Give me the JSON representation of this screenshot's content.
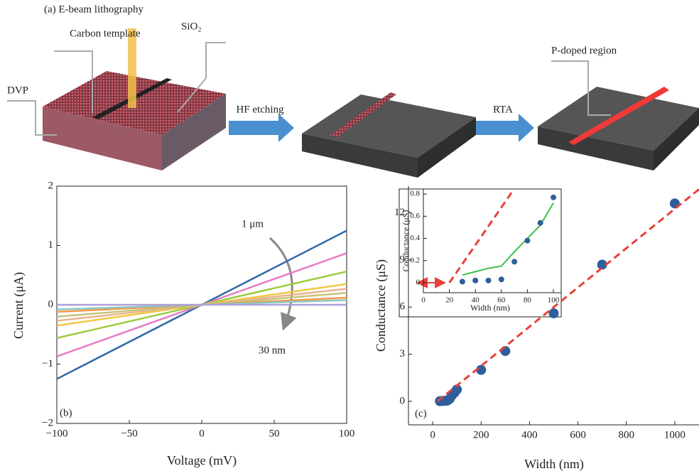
{
  "diagram": {
    "title": "(a)  E-beam lithography",
    "labels": [
      "Carbon template",
      "SiO₂",
      "DVP",
      "HF etching",
      "RTA",
      "P-doped region"
    ]
  },
  "chart_data": [
    {
      "type": "line",
      "panel_label": "(b)",
      "x_label": "Voltage (mV)",
      "y_label": "Current (μA)",
      "annotations": [
        "1 μm",
        "30 nm"
      ],
      "x": [
        -100,
        0,
        100
      ],
      "series": [
        {
          "color": "#2e6aa6",
          "values": [
            -1.25,
            0,
            1.25
          ]
        },
        {
          "color": "#e57bc4",
          "values": [
            -0.87,
            0,
            0.87
          ]
        },
        {
          "color": "#9ccc3c",
          "values": [
            -0.56,
            0,
            0.56
          ]
        },
        {
          "color": "#f2c744",
          "values": [
            -0.35,
            0,
            0.35
          ]
        },
        {
          "color": "#e9b48c",
          "values": [
            -0.27,
            0,
            0.27
          ]
        },
        {
          "color": "#c8c27a",
          "values": [
            -0.2,
            0,
            0.2
          ]
        },
        {
          "color": "#f29a4a",
          "values": [
            -0.12,
            0,
            0.12
          ]
        },
        {
          "color": "#8fc6c0",
          "values": [
            -0.08,
            0,
            0.08
          ]
        },
        {
          "color": "#b0a0d8",
          "values": [
            0,
            0,
            0
          ]
        }
      ],
      "xlim": [
        -100,
        100
      ],
      "xticks": [
        {
          "value": -100,
          "label": "−100"
        },
        {
          "value": -50,
          "label": "−50"
        },
        0,
        50,
        100
      ],
      "ylim": [
        -2,
        2
      ],
      "yticks": [
        {
          "value": -2,
          "label": "−2"
        },
        {
          "value": -1,
          "label": "−1"
        },
        0,
        1,
        2
      ]
    },
    {
      "type": "scatter",
      "panel_label": "(c)",
      "x_label": "Width (nm)",
      "y_label": "Conductance (μS)",
      "series": [
        {
          "kind": "points",
          "color": "#2f5f9a",
          "x": [
            30,
            40,
            50,
            60,
            70,
            80,
            90,
            100,
            200,
            300,
            500,
            700,
            1000
          ],
          "values": [
            0.01,
            0.02,
            0.03,
            0.04,
            0.15,
            0.38,
            0.55,
            0.75,
            2.0,
            3.2,
            5.6,
            8.7,
            12.6
          ]
        },
        {
          "kind": "line",
          "dashed": true,
          "color": "#e8403a",
          "x": [
            20,
            1100
          ],
          "values": [
            0,
            13.5
          ]
        }
      ],
      "xlim": [
        -100,
        1100
      ],
      "xticks": [
        0,
        200,
        400,
        600,
        800,
        1000
      ],
      "ylim": [
        -1.5,
        13.7
      ],
      "yticks": [
        0,
        3,
        6,
        9,
        12
      ]
    },
    {
      "type": "scatter",
      "x_label": "Width (nm)",
      "y_label": "Conductance (μS)",
      "series": [
        {
          "kind": "line",
          "color": "#3cc04a",
          "x": [
            30,
            40,
            50,
            60,
            70,
            80,
            90,
            100
          ],
          "values": [
            0.07,
            0.1,
            0.13,
            0.15,
            0.28,
            0.4,
            0.52,
            0.72
          ]
        },
        {
          "kind": "line",
          "dashed": true,
          "color": "#e8403a",
          "x": [
            20,
            70
          ],
          "values": [
            0,
            0.85
          ]
        },
        {
          "kind": "points",
          "color": "#2f5f9a",
          "x": [
            30,
            40,
            50,
            60,
            70,
            80,
            90,
            100
          ],
          "values": [
            0.01,
            0.02,
            0.02,
            0.03,
            0.19,
            0.38,
            0.54,
            0.77
          ]
        }
      ],
      "xlim": [
        0,
        106
      ],
      "xticks": [
        0,
        20,
        40,
        60,
        80,
        100
      ],
      "ylim": [
        -0.09,
        0.846
      ],
      "yticks": [
        0,
        0.2,
        0.4,
        0.6,
        0.8
      ]
    }
  ]
}
